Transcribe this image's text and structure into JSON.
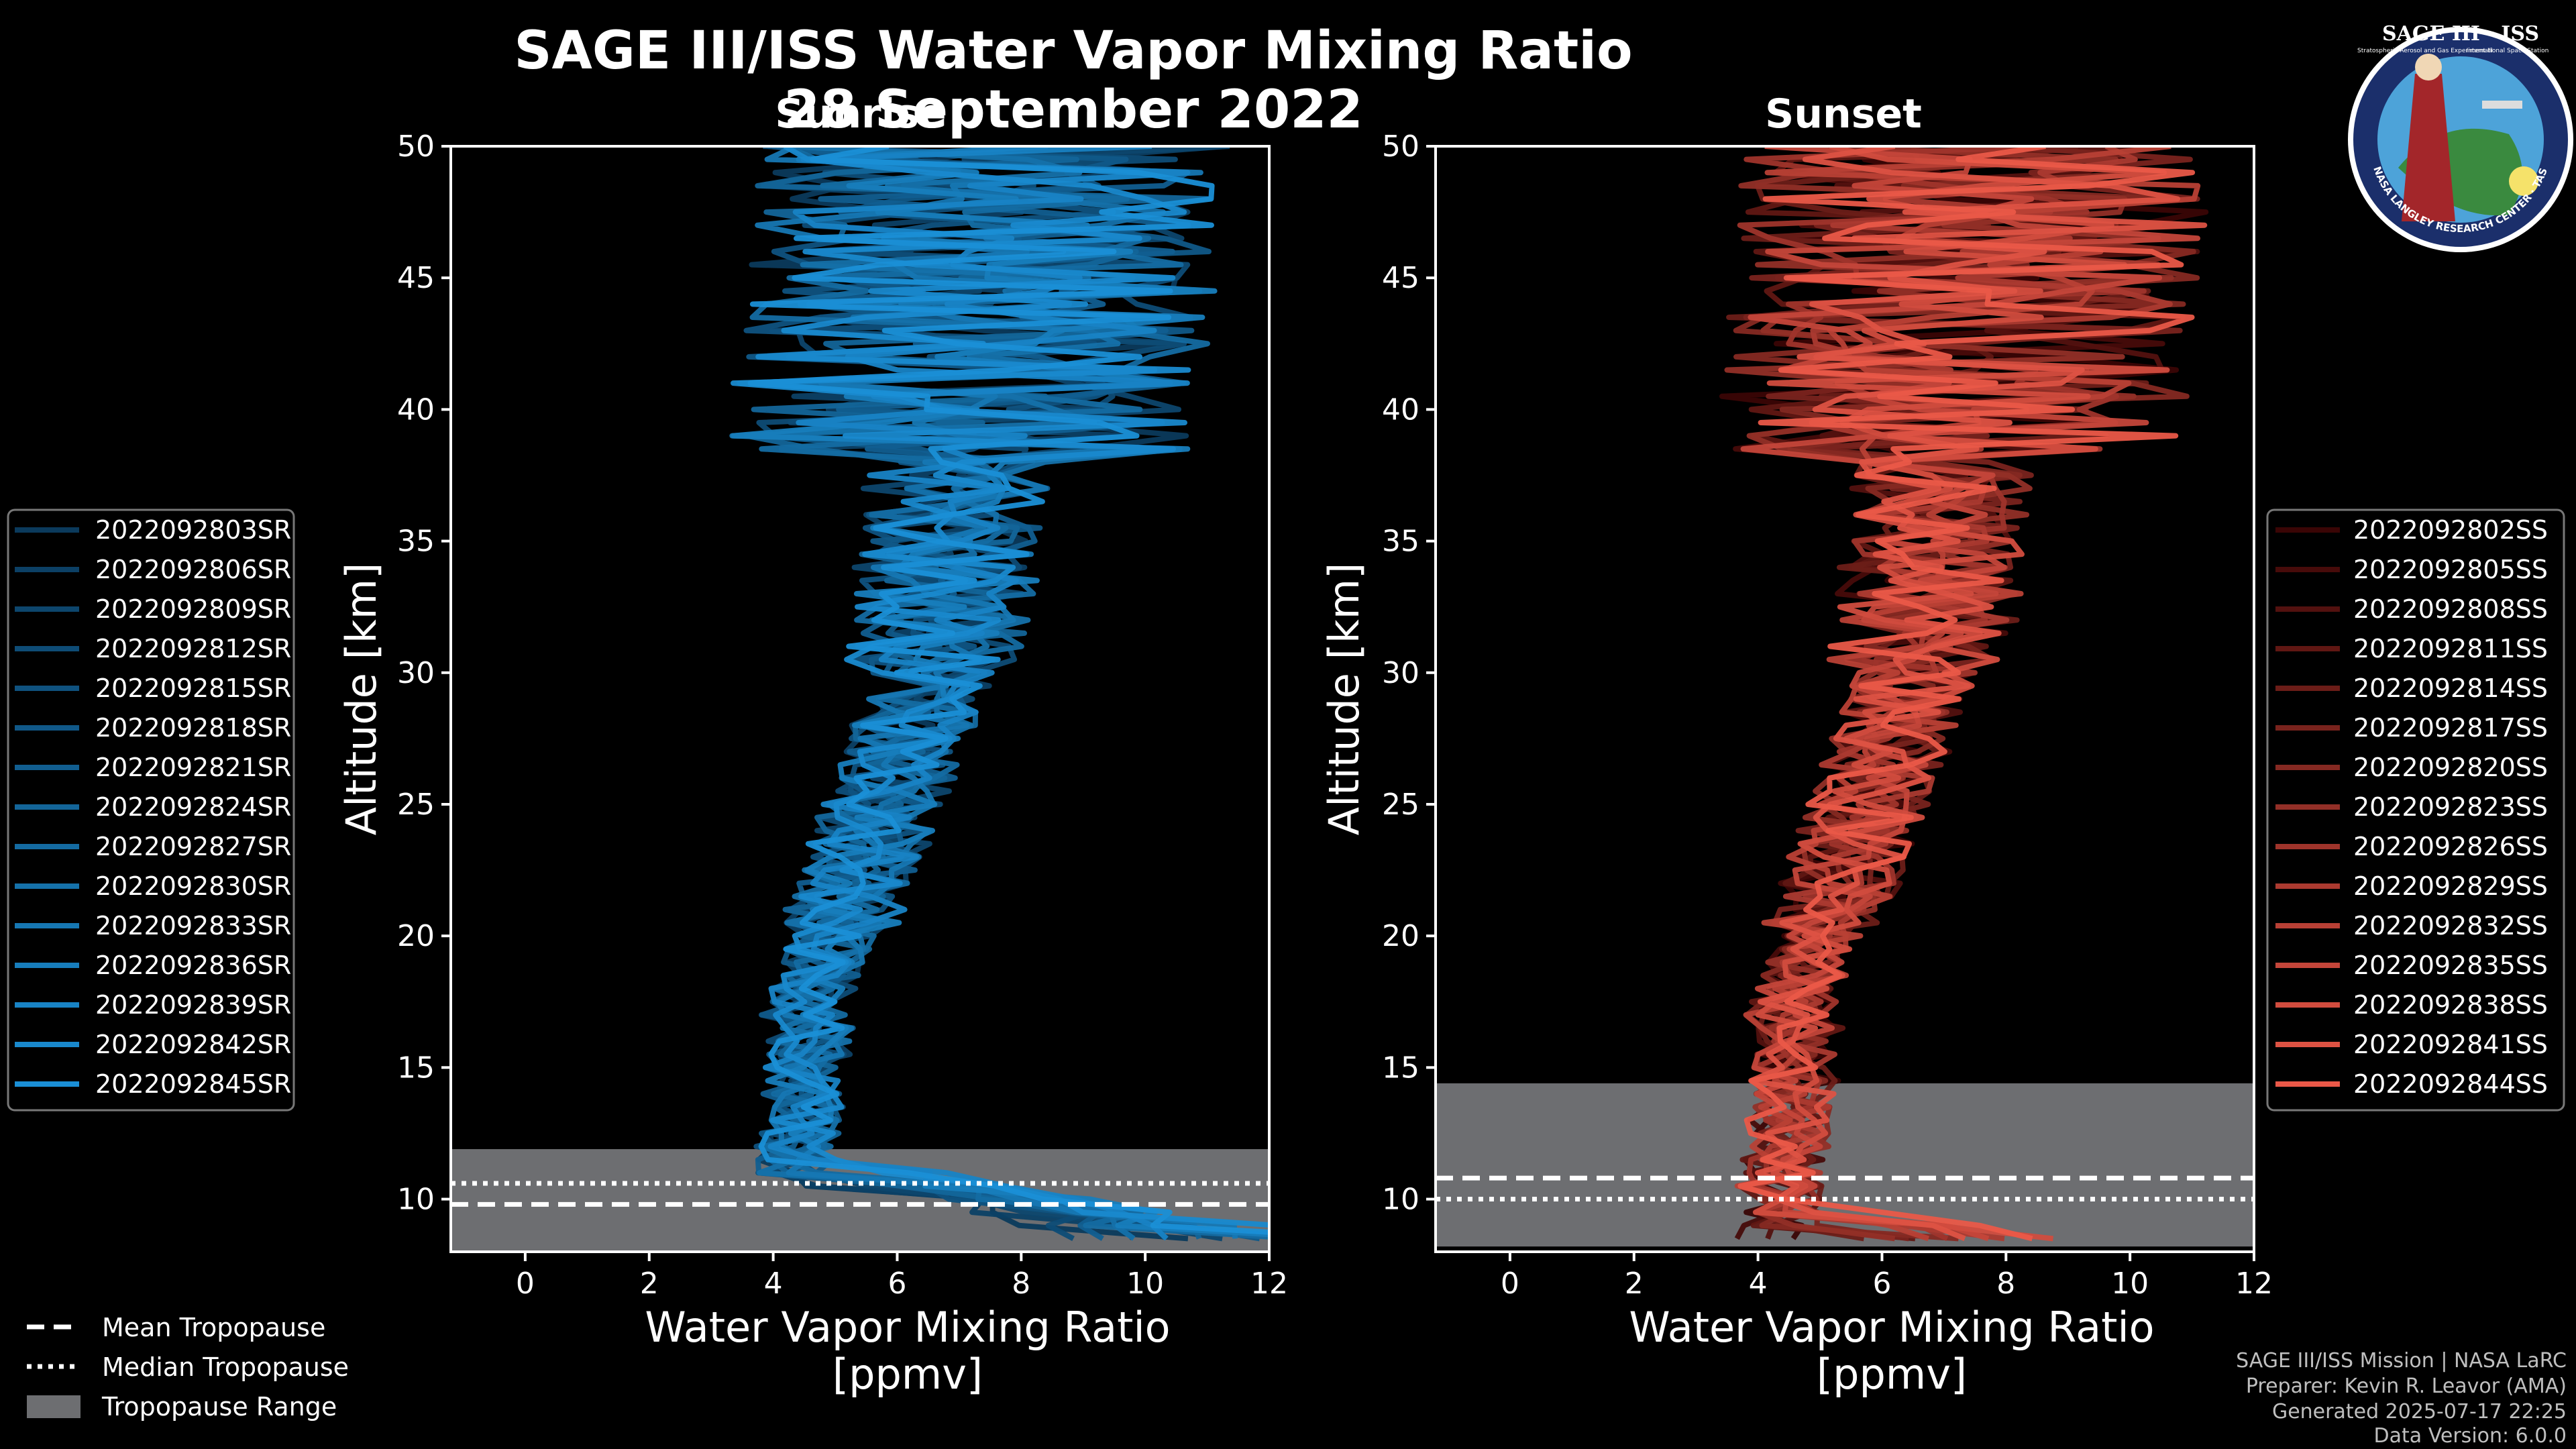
{
  "title": "SAGE III/ISS Water Vapor Mixing Ratio",
  "date": "28 September 2022",
  "credits": [
    "SAGE III/ISS Mission | NASA LaRC",
    "Preparer: Kevin R. Leavor (AMA)",
    "Generated 2025-07-17 22:25",
    "Data Version: 6.0.0"
  ],
  "logo": {
    "name": "SAGE III · ISS",
    "ring_text": "BALL · NASA LANGLEY RESEARCH CENTER · TAS-I · ESA",
    "sub1": "Stratospheric Aerosol and Gas Experiment III",
    "sub2": "International Space Station"
  },
  "bottom_legend": [
    {
      "label": "Mean Tropopause",
      "style": "dashed"
    },
    {
      "label": "Median Tropopause",
      "style": "dotted"
    },
    {
      "label": "Tropopause Range",
      "style": "patch"
    }
  ],
  "chart_data": [
    {
      "type": "line",
      "subtitle": "Sunrise",
      "xlabel": [
        "Water Vapor Mixing Ratio",
        "[ppmv]"
      ],
      "ylabel": "Altitude [km]",
      "xlim": [
        -1.2,
        12
      ],
      "ylim": [
        8,
        50
      ],
      "xticks": [
        "0",
        "2",
        "4",
        "6",
        "8",
        "10",
        "12"
      ],
      "yticks": [
        "10",
        "15",
        "20",
        "25",
        "30",
        "35",
        "40",
        "45",
        "50"
      ],
      "tropopause": {
        "min": 7.9,
        "max": 11.9,
        "mean": 9.8,
        "median": 10.6
      },
      "color_dark": "#0b3a5c",
      "color_light": "#1a8fd6",
      "series": [
        "2022092803SR",
        "2022092806SR",
        "2022092809SR",
        "2022092812SR",
        "2022092815SR",
        "2022092818SR",
        "2022092821SR",
        "2022092824SR",
        "2022092827SR",
        "2022092830SR",
        "2022092833SR",
        "2022092836SR",
        "2022092839SR",
        "2022092842SR",
        "2022092845SR"
      ]
    },
    {
      "type": "line",
      "subtitle": "Sunset",
      "xlabel": [
        "Water Vapor Mixing Ratio",
        "[ppmv]"
      ],
      "ylabel": "Altitude [km]",
      "xlim": [
        -1.2,
        12
      ],
      "ylim": [
        8,
        50
      ],
      "xticks": [
        "0",
        "2",
        "4",
        "6",
        "8",
        "10",
        "12"
      ],
      "yticks": [
        "10",
        "15",
        "20",
        "25",
        "30",
        "35",
        "40",
        "45",
        "50"
      ],
      "tropopause": {
        "min": 8.2,
        "max": 14.4,
        "mean": 10.8,
        "median": 10.0
      },
      "color_dark": "#3a0505",
      "color_light": "#ea5848",
      "series": [
        "2022092802SS",
        "2022092805SS",
        "2022092808SS",
        "2022092811SS",
        "2022092814SS",
        "2022092817SS",
        "2022092820SS",
        "2022092823SS",
        "2022092826SS",
        "2022092829SS",
        "2022092832SS",
        "2022092835SS",
        "2022092838SS",
        "2022092841SS",
        "2022092844SS"
      ]
    }
  ]
}
